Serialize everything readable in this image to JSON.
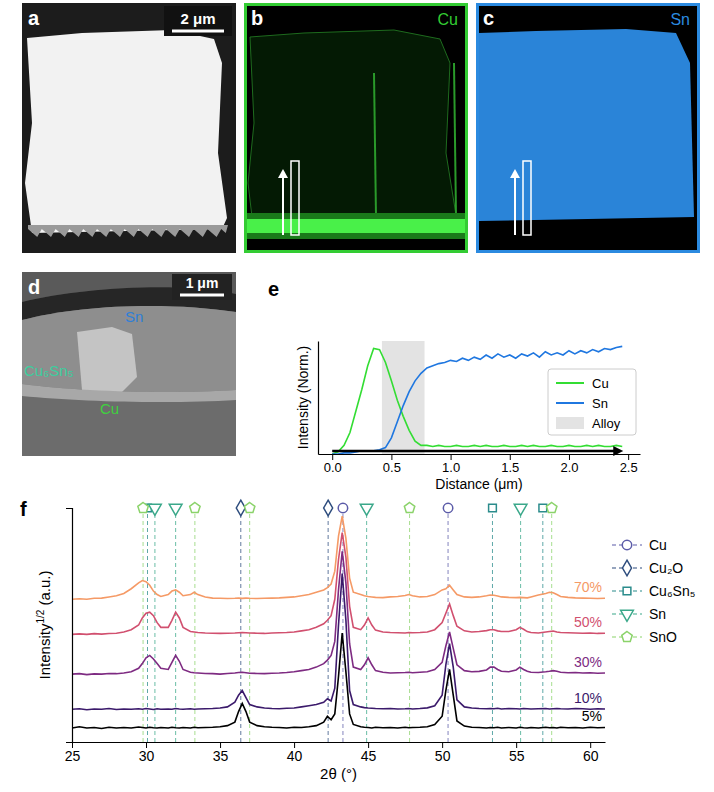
{
  "images": [
    {
      "panel": "a",
      "scale_bar": "2 μm"
    },
    {
      "panel": "b",
      "element": "Cu",
      "color": "#33cc33"
    },
    {
      "panel": "c",
      "element": "Sn",
      "color": "#2b8ae0"
    },
    {
      "panel": "d",
      "scale_bar": "1 μm",
      "regions": [
        {
          "label": "Sn",
          "color": "#2f7fd8"
        },
        {
          "label": "Cu₆Sn₅",
          "color": "#3ccf9e"
        },
        {
          "label": "Cu",
          "color": "#3fd13f"
        }
      ]
    }
  ],
  "chart_data": [
    {
      "panel": "e",
      "type": "line",
      "x_label": "Distance (μm)",
      "y_label": "Intensity (Norm.)",
      "x": [
        0,
        0.05,
        0.1,
        0.15,
        0.2,
        0.25,
        0.3,
        0.35,
        0.4,
        0.45,
        0.5,
        0.55,
        0.6,
        0.65,
        0.7,
        0.75,
        0.8,
        0.85,
        0.9,
        0.95,
        1,
        1.05,
        1.1,
        1.15,
        1.2,
        1.25,
        1.3,
        1.35,
        1.4,
        1.45,
        1.5,
        1.55,
        1.6,
        1.65,
        1.7,
        1.75,
        1.8,
        1.85,
        1.9,
        1.95,
        2,
        2.05,
        2.1,
        2.15,
        2.2,
        2.25,
        2.3,
        2.35,
        2.4,
        2.45
      ],
      "series": [
        {
          "name": "Cu",
          "color": "#33dd33",
          "values": [
            0.0,
            0.02,
            0.08,
            0.2,
            0.4,
            0.6,
            0.82,
            0.98,
            0.97,
            0.85,
            0.68,
            0.5,
            0.35,
            0.22,
            0.12,
            0.08,
            0.08,
            0.07,
            0.08,
            0.07,
            0.07,
            0.08,
            0.07,
            0.07,
            0.08,
            0.07,
            0.08,
            0.07,
            0.07,
            0.08,
            0.07,
            0.07,
            0.08,
            0.07,
            0.08,
            0.07,
            0.07,
            0.08,
            0.07,
            0.07,
            0.08,
            0.07,
            0.07,
            0.08,
            0.07,
            0.08,
            0.07,
            0.07,
            0.08,
            0.07
          ]
        },
        {
          "name": "Sn",
          "color": "#1f77e0",
          "values": [
            0.0,
            0.0,
            0.01,
            0.01,
            0.02,
            0.03,
            0.03,
            0.03,
            0.04,
            0.06,
            0.15,
            0.3,
            0.45,
            0.58,
            0.68,
            0.75,
            0.8,
            0.82,
            0.84,
            0.85,
            0.87,
            0.86,
            0.89,
            0.87,
            0.9,
            0.88,
            0.92,
            0.89,
            0.93,
            0.9,
            0.92,
            0.89,
            0.93,
            0.91,
            0.94,
            0.9,
            0.95,
            0.92,
            0.94,
            0.92,
            0.96,
            0.93,
            0.96,
            0.94,
            0.97,
            0.95,
            0.98,
            0.97,
            0.99,
            1.0
          ]
        }
      ],
      "bands": [
        {
          "name": "Alloy",
          "color": "#e3e3e3",
          "x": [
            0.42,
            0.78
          ]
        }
      ],
      "xlim": [
        -0.12,
        2.6
      ],
      "ylim": [
        0,
        1.05
      ],
      "xticks": [
        {
          "value": 0,
          "label": "0.0"
        },
        0.5,
        {
          "value": 1,
          "label": "1.0"
        },
        1.5,
        {
          "value": 2,
          "label": "2.0"
        },
        2.5
      ],
      "yticks": [],
      "tick_labels": "x",
      "legend": "right"
    },
    {
      "panel": "f",
      "type": "line",
      "x_label": "2θ (°)",
      "y_label": {
        "text": "Intensity",
        "superscript": "1/2",
        "suffix": " (a.u.)"
      },
      "x": [
        25,
        25.5,
        26,
        26.5,
        27,
        27.5,
        28,
        28.5,
        29,
        29.5,
        29.75,
        30,
        30.25,
        30.5,
        30.75,
        31,
        31.5,
        31.75,
        32,
        32.25,
        32.5,
        33,
        33.25,
        33.5,
        34,
        34.5,
        35,
        35.5,
        36,
        36.25,
        36.5,
        36.75,
        37,
        37.5,
        38,
        38.5,
        39,
        39.5,
        40,
        40.5,
        41,
        41.5,
        42,
        42.25,
        42.5,
        42.75,
        43,
        43.25,
        43.5,
        43.75,
        44,
        44.5,
        44.75,
        45,
        45.25,
        45.5,
        46,
        46.5,
        47,
        47.5,
        47.75,
        48,
        48.5,
        49,
        49.5,
        50,
        50.25,
        50.5,
        50.75,
        51,
        51.5,
        52,
        52.5,
        53,
        53.25,
        53.5,
        53.75,
        54,
        54.5,
        55,
        55.25,
        55.5,
        55.75,
        56,
        56.5,
        57,
        57.25,
        57.5,
        57.75,
        58,
        58.5,
        59,
        59.5,
        60,
        60.5,
        61
      ],
      "series": [
        {
          "name": "5%",
          "color": "#000000",
          "values": [
            0.6,
            0.65,
            0.6,
            0.62,
            0.58,
            0.63,
            0.6,
            0.62,
            0.6,
            0.64,
            0.62,
            0.6,
            0.63,
            0.61,
            0.6,
            0.62,
            0.6,
            0.63,
            0.61,
            0.6,
            0.62,
            0.6,
            0.63,
            0.61,
            0.62,
            0.63,
            0.65,
            0.7,
            0.85,
            1.3,
            1.65,
            1.3,
            0.85,
            0.7,
            0.65,
            0.63,
            0.62,
            0.6,
            0.63,
            0.62,
            0.65,
            0.7,
            0.85,
            1.1,
            0.95,
            1.2,
            2.8,
            4.65,
            3.0,
            1.2,
            0.75,
            0.65,
            0.63,
            0.62,
            0.6,
            0.63,
            0.61,
            0.62,
            0.6,
            0.63,
            0.61,
            0.62,
            0.63,
            0.65,
            0.75,
            1.1,
            2.2,
            3.1,
            2.0,
            0.9,
            0.68,
            0.63,
            0.62,
            0.6,
            0.62,
            0.61,
            0.63,
            0.6,
            0.62,
            0.6,
            0.63,
            0.61,
            0.6,
            0.62,
            0.6,
            0.63,
            0.61,
            0.62,
            0.6,
            0.63,
            0.61,
            0.62,
            0.6,
            0.63,
            0.61,
            0.62
          ]
        },
        {
          "name": "10%",
          "color": "#3b1a6b",
          "values": [
            1.4,
            1.42,
            1.38,
            1.41,
            1.4,
            1.43,
            1.39,
            1.41,
            1.4,
            1.42,
            1.4,
            1.43,
            1.41,
            1.39,
            1.42,
            1.4,
            1.41,
            1.4,
            1.43,
            1.41,
            1.4,
            1.42,
            1.4,
            1.41,
            1.42,
            1.43,
            1.45,
            1.5,
            1.7,
            2.0,
            2.2,
            1.9,
            1.6,
            1.5,
            1.45,
            1.43,
            1.42,
            1.44,
            1.45,
            1.5,
            1.55,
            1.6,
            1.7,
            1.85,
            1.75,
            2.3,
            5.0,
            7.2,
            5.2,
            2.2,
            1.6,
            1.5,
            1.47,
            1.45,
            1.44,
            1.43,
            1.42,
            1.43,
            1.41,
            1.42,
            1.43,
            1.41,
            1.43,
            1.46,
            1.55,
            2.0,
            3.3,
            4.2,
            3.2,
            1.8,
            1.5,
            1.45,
            1.43,
            1.42,
            1.43,
            1.42,
            1.44,
            1.41,
            1.43,
            1.42,
            1.41,
            1.43,
            1.42,
            1.41,
            1.42,
            1.43,
            1.41,
            1.42,
            1.43,
            1.42,
            1.41,
            1.43,
            1.42,
            1.4,
            1.42,
            1.41
          ]
        },
        {
          "name": "30%",
          "color": "#7e2b82",
          "values": [
            2.9,
            2.92,
            2.88,
            2.91,
            2.9,
            2.93,
            2.92,
            2.95,
            3.0,
            3.15,
            3.35,
            3.6,
            3.7,
            3.55,
            3.35,
            3.15,
            3.1,
            3.4,
            3.7,
            3.45,
            3.1,
            2.98,
            2.96,
            2.95,
            2.93,
            2.92,
            2.9,
            2.93,
            2.95,
            2.97,
            2.98,
            2.96,
            2.94,
            2.93,
            2.92,
            2.94,
            2.95,
            2.97,
            3.0,
            3.05,
            3.1,
            3.2,
            3.35,
            3.5,
            3.7,
            4.3,
            6.5,
            8.15,
            6.8,
            4.2,
            3.2,
            3.1,
            3.3,
            3.6,
            3.3,
            3.05,
            2.98,
            2.95,
            2.96,
            2.97,
            2.98,
            2.96,
            2.98,
            3.0,
            3.1,
            3.4,
            4.1,
            4.7,
            4.0,
            3.3,
            3.05,
            3.0,
            3.02,
            3.08,
            3.2,
            3.2,
            3.1,
            3.02,
            3.0,
            3.08,
            3.2,
            3.1,
            3.02,
            2.98,
            2.97,
            3.0,
            3.02,
            3.05,
            3.02,
            2.98,
            2.96,
            2.97,
            2.95,
            2.96,
            2.94,
            2.95
          ]
        },
        {
          "name": "50%",
          "color": "#d1506f",
          "values": [
            4.6,
            4.62,
            4.6,
            4.63,
            4.61,
            4.64,
            4.65,
            4.7,
            4.8,
            5.0,
            5.3,
            5.5,
            5.55,
            5.4,
            5.1,
            4.9,
            4.9,
            5.2,
            5.55,
            5.3,
            4.9,
            4.72,
            4.7,
            4.68,
            4.66,
            4.65,
            4.64,
            4.65,
            4.66,
            4.67,
            4.68,
            4.67,
            4.66,
            4.65,
            4.64,
            4.66,
            4.67,
            4.68,
            4.7,
            4.75,
            4.8,
            4.9,
            5.05,
            5.2,
            5.4,
            6.1,
            7.8,
            8.95,
            7.9,
            5.8,
            4.9,
            4.8,
            5.0,
            5.3,
            5.0,
            4.78,
            4.7,
            4.68,
            4.67,
            4.66,
            4.68,
            4.67,
            4.68,
            4.7,
            4.8,
            5.1,
            5.5,
            5.9,
            5.4,
            4.95,
            4.75,
            4.7,
            4.72,
            4.76,
            4.8,
            4.8,
            4.75,
            4.72,
            4.72,
            4.8,
            4.9,
            4.82,
            4.72,
            4.68,
            4.66,
            4.7,
            4.72,
            4.74,
            4.7,
            4.68,
            4.67,
            4.66,
            4.65,
            4.66,
            4.64,
            4.65
          ]
        },
        {
          "name": "70%",
          "color": "#f59a66",
          "values": [
            6.1,
            6.12,
            6.1,
            6.14,
            6.15,
            6.2,
            6.25,
            6.35,
            6.55,
            6.8,
            6.9,
            6.85,
            6.7,
            6.45,
            6.3,
            6.22,
            6.3,
            6.45,
            6.5,
            6.4,
            6.25,
            6.3,
            6.4,
            6.3,
            6.2,
            6.15,
            6.14,
            6.13,
            6.14,
            6.15,
            6.14,
            6.15,
            6.14,
            6.13,
            6.14,
            6.15,
            6.16,
            6.18,
            6.2,
            6.25,
            6.3,
            6.4,
            6.5,
            6.6,
            6.75,
            7.3,
            8.8,
            9.65,
            8.7,
            7.0,
            6.4,
            6.3,
            6.25,
            6.22,
            6.2,
            6.18,
            6.17,
            6.2,
            6.22,
            6.26,
            6.3,
            6.25,
            6.2,
            6.22,
            6.3,
            6.5,
            6.55,
            6.7,
            6.5,
            6.3,
            6.2,
            6.18,
            6.2,
            6.25,
            6.28,
            6.27,
            6.24,
            6.2,
            6.18,
            6.17,
            6.18,
            6.17,
            6.16,
            6.2,
            6.28,
            6.35,
            6.4,
            6.38,
            6.3,
            6.22,
            6.18,
            6.16,
            6.15,
            6.14,
            6.13,
            6.14
          ]
        }
      ],
      "references": [
        {
          "name": "Cu",
          "color": "#5b5ba8",
          "marker": "circle",
          "positions": [
            43.3,
            50.4
          ]
        },
        {
          "name": "Cu₂O",
          "color": "#2e4d7e",
          "marker": "diamond",
          "positions": [
            36.4,
            42.3
          ]
        },
        {
          "name": "Cu₆Sn₅",
          "color": "#2b8c8c",
          "marker": "square",
          "positions": [
            30.1,
            53.4,
            56.8
          ]
        },
        {
          "name": "Sn",
          "color": "#3aa88a",
          "marker": "triangle-down",
          "positions": [
            30.6,
            32.0,
            44.9,
            55.3
          ]
        },
        {
          "name": "SnO",
          "color": "#8bd36a",
          "marker": "pentagon",
          "positions": [
            29.8,
            33.3,
            37.0,
            47.8,
            57.4
          ]
        }
      ],
      "xlim": [
        25,
        61
      ],
      "ylim": [
        0,
        10
      ],
      "xticks": [
        25,
        30,
        35,
        40,
        45,
        50,
        55,
        60
      ],
      "yticks": [],
      "tick_labels": "x",
      "legend": "right"
    }
  ]
}
